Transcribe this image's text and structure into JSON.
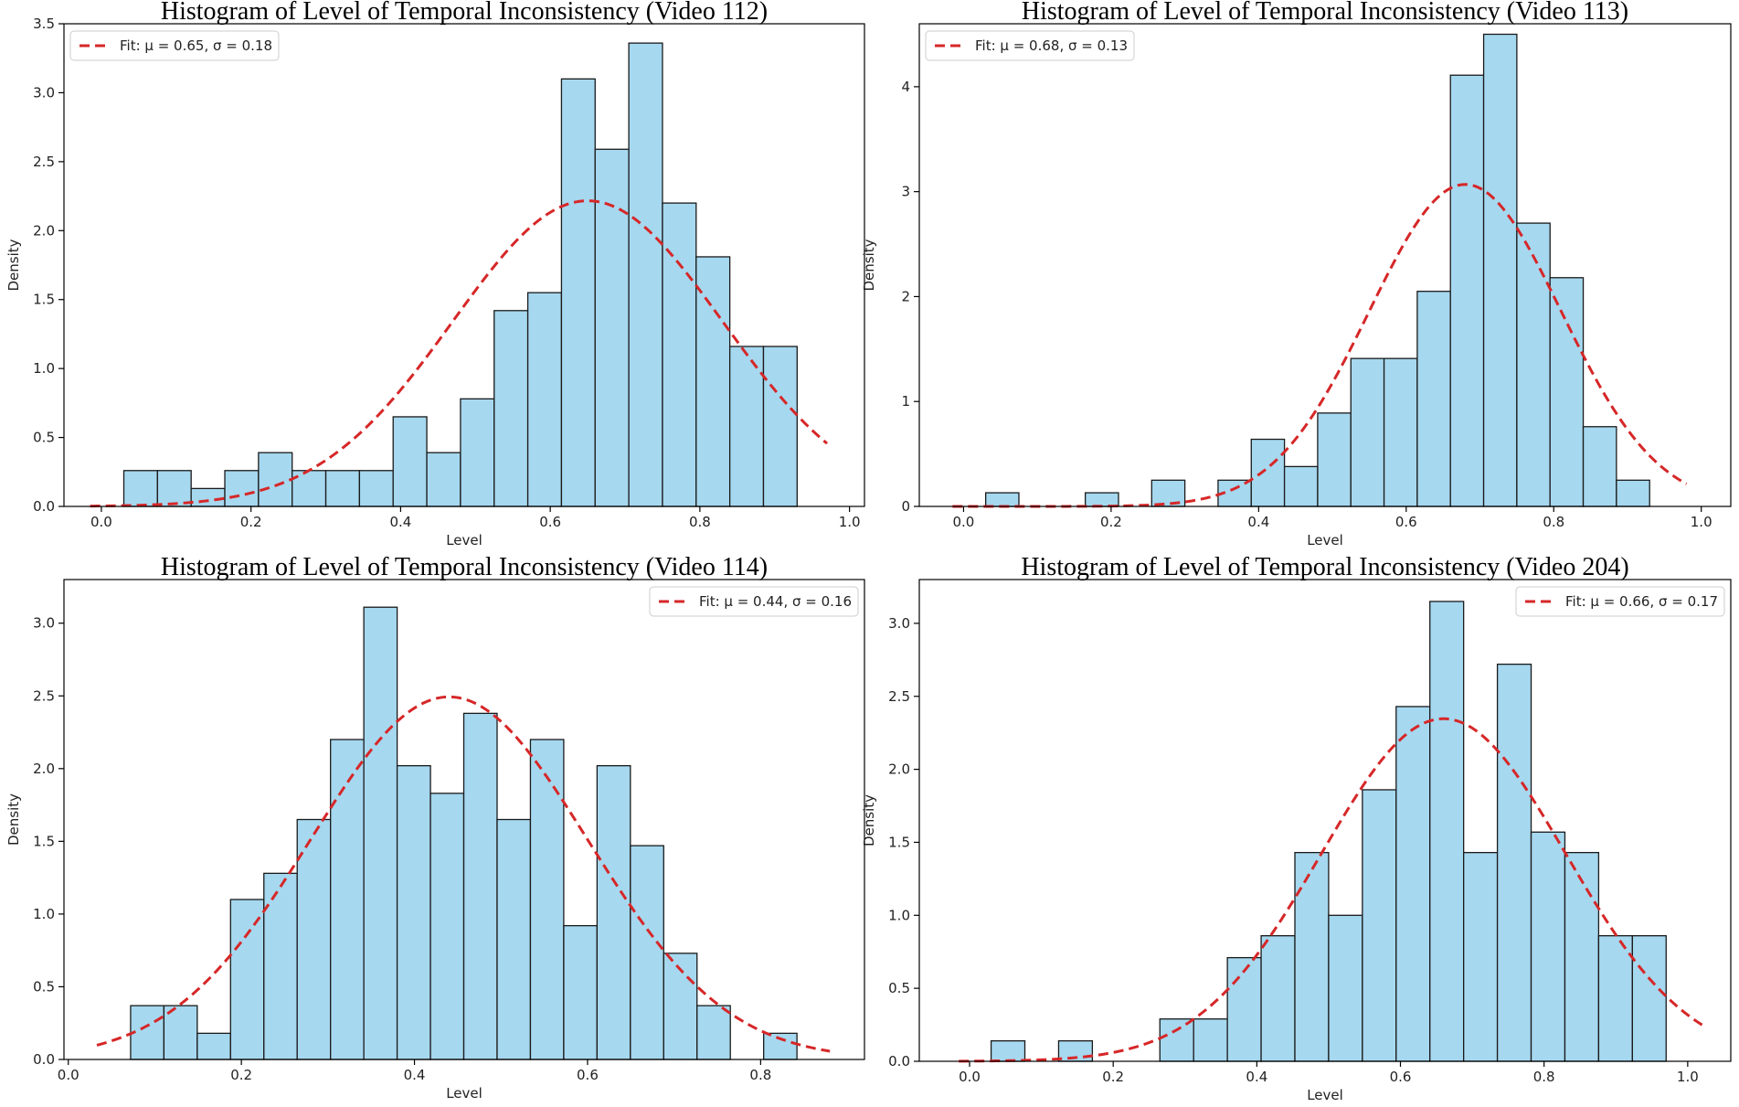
{
  "chart_data": [
    {
      "type": "bar",
      "title": "Histogram of Level of Temporal Inconsistency (Video 112)",
      "xlabel": "Level",
      "ylabel": "Density",
      "xlim": [
        -0.05,
        1.02
      ],
      "ylim": [
        0,
        3.5
      ],
      "xticks": [
        0.0,
        0.2,
        0.4,
        0.6,
        0.8,
        1.0
      ],
      "xtick_labels": [
        "0.0",
        "0.2",
        "0.4",
        "0.6",
        "0.8",
        "1.0"
      ],
      "yticks": [
        0.0,
        0.5,
        1.0,
        1.5,
        2.0,
        2.5,
        3.0,
        3.5
      ],
      "ytick_labels": [
        "0.0",
        "0.5",
        "1.0",
        "1.5",
        "2.0",
        "2.5",
        "3.0",
        "3.5"
      ],
      "bin_start": 0.03,
      "bin_width": 0.045,
      "values": [
        0.26,
        0.26,
        0.13,
        0.26,
        0.39,
        0.26,
        0.26,
        0.26,
        0.65,
        0.39,
        0.78,
        1.42,
        1.55,
        3.1,
        2.59,
        3.36,
        2.2,
        1.81,
        1.16,
        1.16
      ],
      "fit": {
        "mu": 0.65,
        "sigma": 0.18,
        "x_range": [
          -0.015,
          0.97
        ]
      },
      "legend_label": "Fit: μ = 0.65, σ = 0.18",
      "legend_position": "top-left"
    },
    {
      "type": "bar",
      "title": "Histogram of Level of Temporal Inconsistency (Video 113)",
      "xlabel": "Level",
      "ylabel": "Density",
      "xlim": [
        -0.06,
        1.04
      ],
      "ylim": [
        0,
        4.6
      ],
      "xticks": [
        0.0,
        0.2,
        0.4,
        0.6,
        0.8,
        1.0
      ],
      "xtick_labels": [
        "0.0",
        "0.2",
        "0.4",
        "0.6",
        "0.8",
        "1.0"
      ],
      "yticks": [
        0,
        1,
        2,
        3,
        4
      ],
      "ytick_labels": [
        "0",
        "1",
        "2",
        "3",
        "4"
      ],
      "bin_start": 0.03,
      "bin_width": 0.045,
      "values": [
        0.13,
        0.0,
        0.0,
        0.13,
        0.0,
        0.25,
        0.0,
        0.25,
        0.64,
        0.38,
        0.89,
        1.41,
        1.41,
        2.05,
        4.11,
        4.5,
        2.7,
        2.18,
        0.76,
        0.25
      ],
      "fit": {
        "mu": 0.68,
        "sigma": 0.13,
        "x_range": [
          -0.015,
          0.98
        ]
      },
      "legend_label": "Fit: μ = 0.68, σ = 0.13",
      "legend_position": "top-left"
    },
    {
      "type": "bar",
      "title": "Histogram of Level of Temporal Inconsistency (Video 114)",
      "xlabel": "Level",
      "ylabel": "Density",
      "xlim": [
        -0.005,
        0.92
      ],
      "ylim": [
        0,
        3.3
      ],
      "xticks": [
        0.0,
        0.2,
        0.4,
        0.6,
        0.8
      ],
      "xtick_labels": [
        "0.0",
        "0.2",
        "0.4",
        "0.6",
        "0.8"
      ],
      "yticks": [
        0.0,
        0.5,
        1.0,
        1.5,
        2.0,
        2.5,
        3.0
      ],
      "ytick_labels": [
        "0.0",
        "0.5",
        "1.0",
        "1.5",
        "2.0",
        "2.5",
        "3.0"
      ],
      "bin_start": 0.072,
      "bin_width": 0.0385,
      "values": [
        0.37,
        0.37,
        0.18,
        1.1,
        1.28,
        1.65,
        2.2,
        3.11,
        2.02,
        1.83,
        2.38,
        1.65,
        2.2,
        0.92,
        2.02,
        1.47,
        0.73,
        0.37,
        0.0,
        0.18
      ],
      "fit": {
        "mu": 0.44,
        "sigma": 0.16,
        "x_range": [
          0.033,
          0.88
        ]
      },
      "legend_label": "Fit: μ = 0.44, σ = 0.16",
      "legend_position": "top-right"
    },
    {
      "type": "bar",
      "title": "Histogram of Level of Temporal Inconsistency (Video 204)",
      "xlabel": "Level",
      "ylabel": "Density",
      "xlim": [
        -0.07,
        1.06
      ],
      "ylim": [
        0,
        3.3
      ],
      "xticks": [
        0.0,
        0.2,
        0.4,
        0.6,
        0.8,
        1.0
      ],
      "xtick_labels": [
        "0.0",
        "0.2",
        "0.4",
        "0.6",
        "0.8",
        "1.0"
      ],
      "yticks": [
        0.0,
        0.5,
        1.0,
        1.5,
        2.0,
        2.5,
        3.0
      ],
      "ytick_labels": [
        "0.0",
        "0.5",
        "1.0",
        "1.5",
        "2.0",
        "2.5",
        "3.0"
      ],
      "bin_start": 0.03,
      "bin_width": 0.047,
      "values": [
        0.14,
        0.0,
        0.14,
        0.0,
        0.0,
        0.29,
        0.29,
        0.71,
        0.86,
        1.43,
        1.0,
        1.86,
        2.43,
        3.15,
        1.43,
        2.72,
        1.57,
        1.43,
        0.86,
        0.86
      ],
      "fit": {
        "mu": 0.66,
        "sigma": 0.17,
        "x_range": [
          -0.015,
          1.02
        ]
      },
      "legend_label": "Fit: μ = 0.66, σ = 0.17",
      "legend_position": "top-right"
    }
  ],
  "colors": {
    "bar_fill": "#a6d8ef",
    "bar_edge": "#1a1a1a",
    "fit_line": "#d62728",
    "axes": "#000000"
  }
}
